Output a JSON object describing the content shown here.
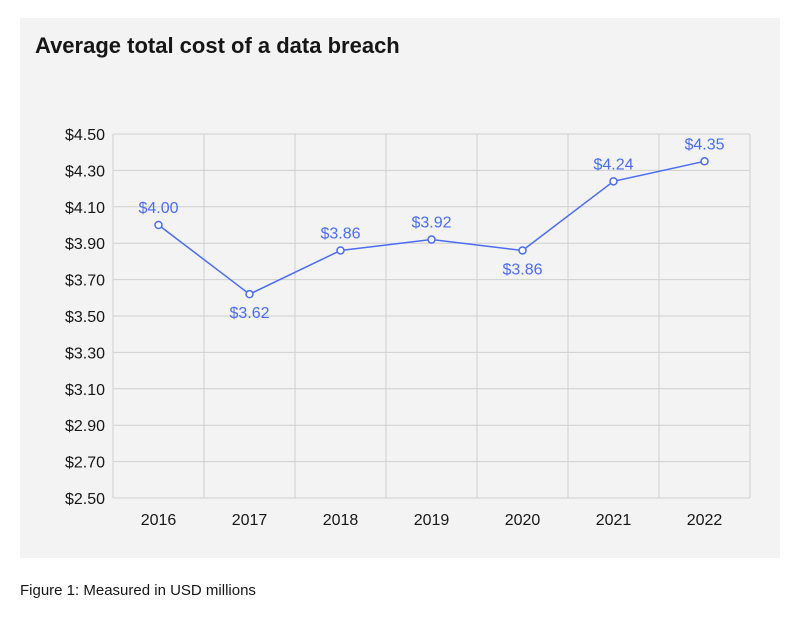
{
  "chart_data": {
    "type": "line",
    "title": "Average total cost of a data breach",
    "xlabel": "",
    "ylabel": "",
    "categories": [
      "2016",
      "2017",
      "2018",
      "2019",
      "2020",
      "2021",
      "2022"
    ],
    "series": [
      {
        "name": "Average total cost",
        "values": [
          4.0,
          3.62,
          3.86,
          3.92,
          3.86,
          4.24,
          4.35
        ],
        "data_labels": [
          "$4.00",
          "$3.62",
          "$3.86",
          "$3.92",
          "$3.86",
          "$4.24",
          "$4.35"
        ],
        "label_position": [
          "above",
          "below",
          "above",
          "above",
          "below",
          "above",
          "above"
        ]
      }
    ],
    "ylim": [
      2.5,
      4.5
    ],
    "yticks": [
      2.5,
      2.7,
      2.9,
      3.1,
      3.3,
      3.5,
      3.7,
      3.9,
      4.1,
      4.3,
      4.5
    ],
    "ytick_labels": [
      "$2.50",
      "$2.70",
      "$2.90",
      "$3.10",
      "$3.30",
      "$3.50",
      "$3.70",
      "$3.90",
      "$4.10",
      "$4.30",
      "$4.50"
    ],
    "grid": true,
    "line_color": "#4a6cf7"
  },
  "caption": "Figure 1: Measured in USD millions"
}
